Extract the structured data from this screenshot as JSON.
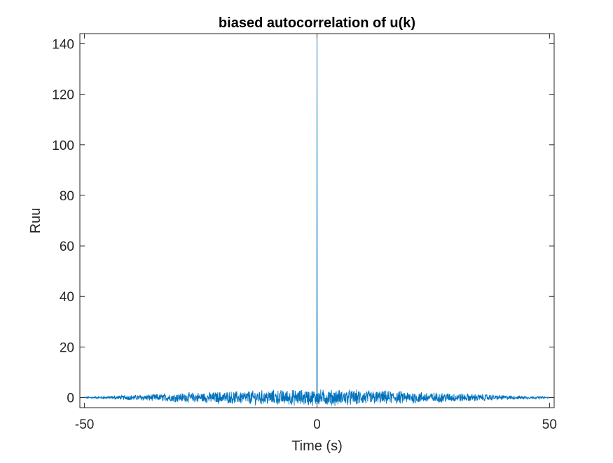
{
  "chart_data": {
    "type": "line",
    "title": "biased autocorrelation of u(k)",
    "xlabel": "Time (s)",
    "ylabel": "Ruu",
    "xlim": [
      -51,
      51
    ],
    "ylim": [
      -4,
      144
    ],
    "x_ticks": [
      -50,
      0,
      50
    ],
    "x_tick_labels": [
      "-50",
      "0",
      "50"
    ],
    "y_ticks": [
      0,
      20,
      40,
      60,
      80,
      100,
      120,
      140
    ],
    "y_tick_labels": [
      "0",
      "20",
      "40",
      "60",
      "80",
      "100",
      "120",
      "140"
    ],
    "grid": false,
    "legend": "none",
    "series": [
      {
        "color": "#0072BD",
        "peak": {
          "x": 0,
          "y": 144
        },
        "envelope": {
          "x": [
            -50,
            -40,
            -30,
            -20,
            -10,
            0,
            10,
            20,
            30,
            40,
            50
          ],
          "amplitude": [
            0.3,
            1.0,
            1.8,
            2.4,
            3.0,
            3.2,
            3.0,
            2.4,
            1.8,
            1.0,
            0.3
          ]
        },
        "x_range": [
          -50,
          50
        ],
        "samples": 2001
      }
    ]
  },
  "colors": {
    "line": "#0072BD",
    "axes": "#262626",
    "background": "#ffffff"
  }
}
